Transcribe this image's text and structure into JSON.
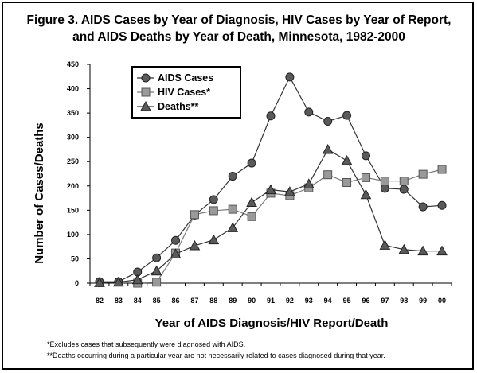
{
  "chart_data": {
    "type": "line",
    "title_line1": "Figure 3.  AIDS Cases by Year of Diagnosis, HIV Cases by Year of Report,",
    "title_line2": "and AIDS Deaths by Year of Death, Minnesota, 1982-2000",
    "xlabel": "Year of AIDS Diagnosis/HIV Report/Death",
    "ylabel": "Number of Cases/Deaths",
    "ylim": [
      0,
      450
    ],
    "yticks": [
      "0",
      "50",
      "100",
      "150",
      "200",
      "250",
      "300",
      "350",
      "400",
      "450"
    ],
    "categories": [
      "82",
      "83",
      "84",
      "85",
      "86",
      "87",
      "88",
      "89",
      "90",
      "91",
      "92",
      "93",
      "94",
      "95",
      "96",
      "97",
      "98",
      "99",
      "00"
    ],
    "grid": false,
    "legend_position": "top-left",
    "series": [
      {
        "name": "AIDS Cases",
        "marker": "circle",
        "color": "#5a5a5a",
        "values": [
          3,
          3,
          23,
          52,
          88,
          140,
          172,
          220,
          247,
          344,
          424,
          352,
          333,
          345,
          262,
          195,
          193,
          157,
          160
        ]
      },
      {
        "name": "HIV Cases*",
        "marker": "square",
        "color": "#9a9a9a",
        "values": [
          null,
          null,
          0,
          2,
          62,
          141,
          149,
          152,
          137,
          185,
          180,
          196,
          223,
          207,
          217,
          210,
          210,
          224,
          234
        ]
      },
      {
        "name": "Deaths**",
        "marker": "triangle",
        "color": "#5a5a5a",
        "values": [
          1,
          2,
          7,
          25,
          60,
          77,
          89,
          114,
          166,
          192,
          188,
          204,
          275,
          252,
          182,
          78,
          69,
          66,
          66
        ]
      }
    ]
  },
  "footnotes": {
    "line1": "*Excludes cases that subsequently were diagnosed with AIDS.",
    "line2": "**Deaths occurring during a particular year are not necessarily related to cases diagnosed during that year."
  }
}
